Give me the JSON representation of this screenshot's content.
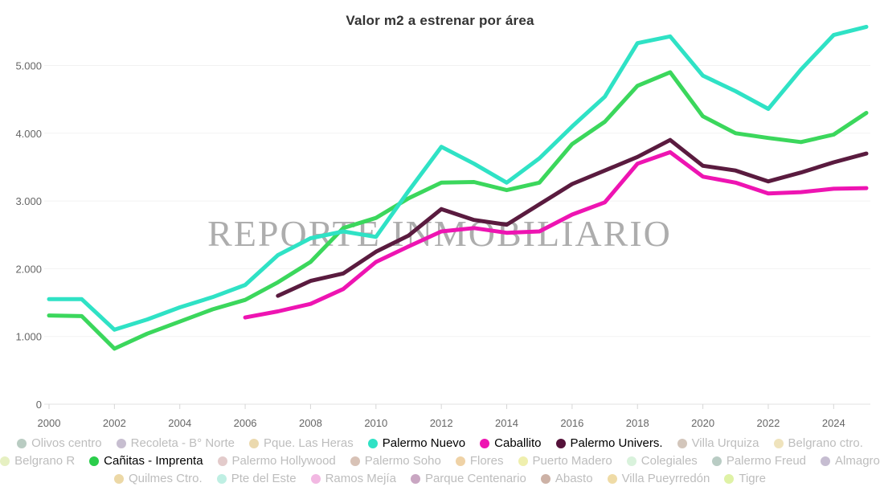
{
  "title": "Valor m2 a estrenar por área",
  "watermark": "REPORTE INMOBILIARIO",
  "axis": {
    "y_ticks": [
      {
        "value": 0,
        "label": "0"
      },
      {
        "value": 1000,
        "label": "1.000"
      },
      {
        "value": 2000,
        "label": "2.000"
      },
      {
        "value": 3000,
        "label": "3.000"
      },
      {
        "value": 4000,
        "label": "4.000"
      },
      {
        "value": 5000,
        "label": "5.000"
      }
    ],
    "x_tick_labels": [
      "2000",
      "2002",
      "2004",
      "2006",
      "2008",
      "2010",
      "2012",
      "2014",
      "2016",
      "2018",
      "2020",
      "2022",
      "2024"
    ]
  },
  "colors": {
    "grid": "#f2f2f2",
    "axis_line": "#e0e0e0",
    "tick": "#d6d6d6",
    "axis_text": "#666666",
    "watermark": "#999999",
    "legend_inactive_text": "#bdbdbd",
    "legend_active_text": "#000000"
  },
  "chart_data": {
    "type": "line",
    "title": "Valor m2 a estrenar por área",
    "xlabel": "",
    "ylabel": "",
    "x": [
      2000,
      2001,
      2002,
      2003,
      2004,
      2005,
      2006,
      2007,
      2008,
      2009,
      2010,
      2011,
      2012,
      2013,
      2014,
      2015,
      2016,
      2017,
      2018,
      2019,
      2020,
      2021,
      2022,
      2023,
      2024,
      2025
    ],
    "xlim": [
      2000,
      2025
    ],
    "ylim": [
      0,
      5600
    ],
    "grid": "horizontal",
    "legend_position": "bottom",
    "series": [
      {
        "name": "Caballito",
        "color": "#ee14b2",
        "values": [
          null,
          null,
          null,
          null,
          null,
          null,
          1280,
          1370,
          1480,
          1700,
          2100,
          2330,
          2550,
          2600,
          2530,
          2550,
          2800,
          2980,
          3550,
          3720,
          3360,
          3270,
          3110,
          3130,
          3180,
          3190
        ]
      },
      {
        "name": "Palermo Univers.",
        "color": "#5a1b3f",
        "values": [
          null,
          null,
          null,
          null,
          null,
          null,
          null,
          1600,
          1820,
          1930,
          2250,
          2490,
          2880,
          2720,
          2650,
          2950,
          3250,
          3450,
          3650,
          3900,
          3520,
          3450,
          3290,
          3420,
          3570,
          3700
        ]
      },
      {
        "name": "Cañitas - Imprenta",
        "color": "#3bd75c",
        "values": [
          1310,
          1300,
          820,
          1040,
          1220,
          1400,
          1540,
          1800,
          2100,
          2600,
          2750,
          3040,
          3270,
          3280,
          3160,
          3270,
          3840,
          4170,
          4700,
          4900,
          4250,
          4000,
          3930,
          3870,
          3980,
          4300
        ]
      },
      {
        "name": "Palermo Nuevo",
        "color": "#2fe2c5",
        "values": [
          1550,
          1550,
          1100,
          1250,
          1430,
          1580,
          1760,
          2200,
          2450,
          2550,
          2470,
          3150,
          3800,
          3550,
          3270,
          3630,
          4100,
          4540,
          5330,
          5430,
          4850,
          4620,
          4360,
          4940,
          5450,
          5570
        ]
      }
    ]
  },
  "legend": {
    "rows": [
      [
        {
          "label": "Olivos centro",
          "color": "#b9ccc2",
          "active": false
        },
        {
          "label": "Recoleta - B° Norte",
          "color": "#c7bed0",
          "active": false
        },
        {
          "label": "Pque. Las Heras",
          "color": "#ebd9ae",
          "active": false
        },
        {
          "label": "Palermo Nuevo",
          "color": "#2fe2c5",
          "active": true
        },
        {
          "label": "Caballito",
          "color": "#ee14b2",
          "active": true
        },
        {
          "label": "Palermo Univers.",
          "color": "#55123a",
          "active": true
        },
        {
          "label": "Villa Urquiza",
          "color": "#d3c6bb",
          "active": false
        },
        {
          "label": "Belgrano ctro.",
          "color": "#efe3bc",
          "active": false
        }
      ],
      [
        {
          "label": "Belgrano R",
          "color": "#e6f0c2",
          "active": false
        },
        {
          "label": "Cañitas - Imprenta",
          "color": "#2acd4b",
          "active": true
        },
        {
          "label": "Palermo Hollywood",
          "color": "#e3cbcb",
          "active": false
        },
        {
          "label": "Palermo Soho",
          "color": "#d8c2b6",
          "active": false
        },
        {
          "label": "Flores",
          "color": "#efd2a6",
          "active": false
        },
        {
          "label": "Puerto Madero",
          "color": "#efefae",
          "active": false
        },
        {
          "label": "Colegiales",
          "color": "#d9f2dc",
          "active": false
        },
        {
          "label": "Palermo Freud",
          "color": "#b9ccc4",
          "active": false
        },
        {
          "label": "Almagro",
          "color": "#c6bdd1",
          "active": false
        }
      ],
      [
        {
          "label": "Quilmes Ctro.",
          "color": "#ecd8a6",
          "active": false
        },
        {
          "label": "Pte del Este",
          "color": "#bfefe3",
          "active": false
        },
        {
          "label": "Ramos Mejía",
          "color": "#f2b8e2",
          "active": false
        },
        {
          "label": "Parque Centenario",
          "color": "#c9a6c2",
          "active": false
        },
        {
          "label": "Abasto",
          "color": "#cdb2a6",
          "active": false
        },
        {
          "label": "Villa Pueyrredón",
          "color": "#efdba6",
          "active": false
        },
        {
          "label": "Tigre",
          "color": "#dff2a6",
          "active": false
        }
      ]
    ]
  }
}
